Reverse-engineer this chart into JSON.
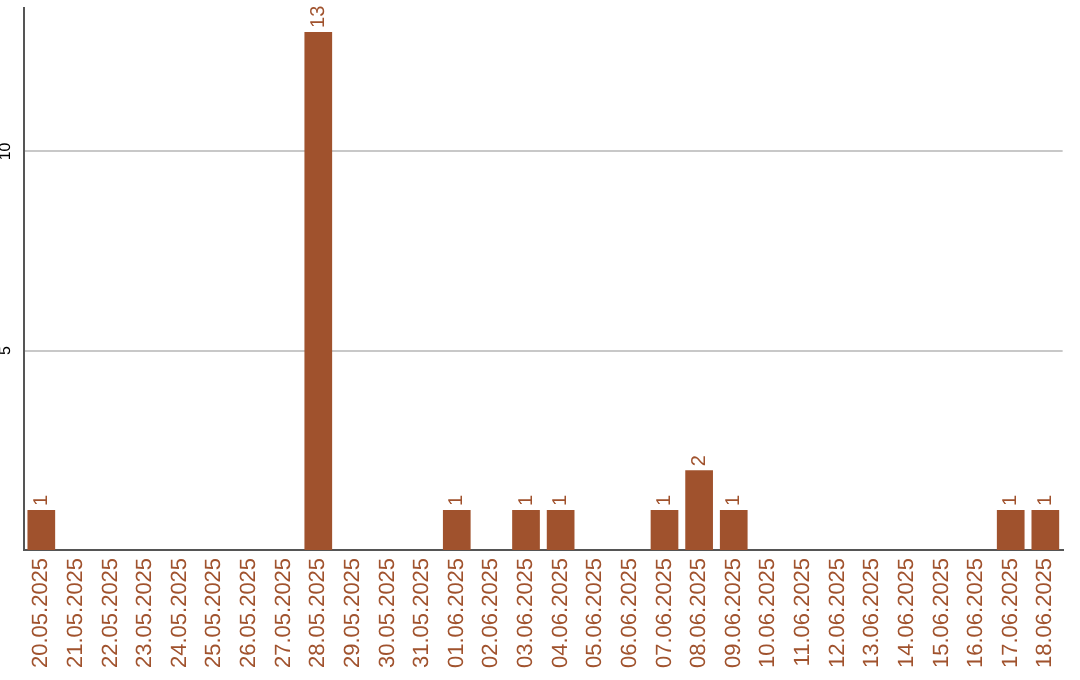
{
  "chart_data": {
    "type": "bar",
    "categories": [
      "20.05.2025",
      "21.05.2025",
      "22.05.2025",
      "23.05.2025",
      "24.05.2025",
      "25.05.2025",
      "26.05.2025",
      "27.05.2025",
      "28.05.2025",
      "29.05.2025",
      "30.05.2025",
      "31.05.2025",
      "01.06.2025",
      "02.06.2025",
      "03.06.2025",
      "04.06.2025",
      "05.06.2025",
      "06.06.2025",
      "07.06.2025",
      "08.06.2025",
      "09.06.2025",
      "10.06.2025",
      "11.06.2025",
      "12.06.2025",
      "13.06.2025",
      "14.06.2025",
      "15.06.2025",
      "16.06.2025",
      "17.06.2025",
      "18.06.2025"
    ],
    "values": [
      1,
      0,
      0,
      0,
      0,
      0,
      0,
      0,
      13,
      0,
      0,
      0,
      1,
      0,
      1,
      1,
      0,
      0,
      1,
      2,
      1,
      0,
      0,
      0,
      0,
      0,
      0,
      0,
      1,
      1
    ],
    "value_labels": [
      "1",
      null,
      null,
      null,
      null,
      null,
      null,
      null,
      "13",
      null,
      null,
      null,
      "1",
      null,
      "1",
      "1",
      null,
      null,
      "1",
      "2",
      "1",
      null,
      null,
      null,
      null,
      null,
      null,
      null,
      "1",
      "1"
    ],
    "color": "#a0522d",
    "ylim": [
      0,
      13.6
    ],
    "yticks": [
      5,
      10
    ],
    "grid": "y"
  }
}
